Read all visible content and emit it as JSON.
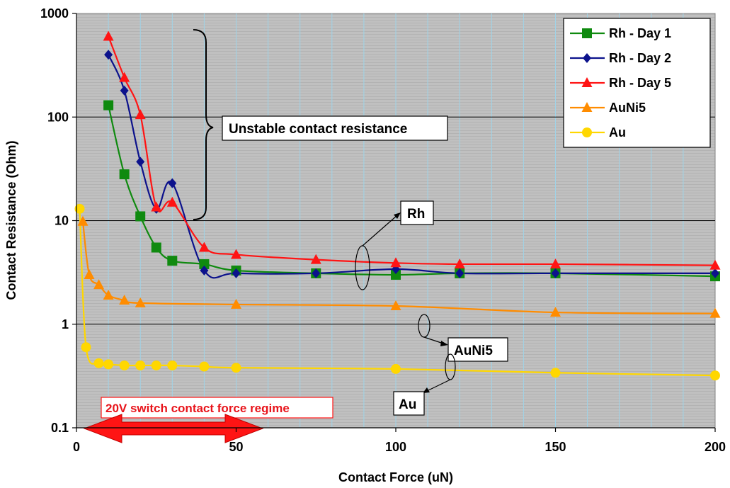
{
  "chart_data": {
    "type": "line",
    "title": "",
    "xlabel": "Contact Force (uN)",
    "ylabel": "Contact Resistance (Ohm)",
    "xlim": [
      0,
      200
    ],
    "ylim": [
      0.1,
      1000
    ],
    "yscale": "log",
    "grid": true,
    "legend_position": "top-right",
    "x_ticks": [
      "0",
      "50",
      "100",
      "150",
      "200"
    ],
    "y_ticks": [
      "0.1",
      "1",
      "10",
      "100",
      "1000"
    ],
    "series": [
      {
        "name": "Rh - Day 1",
        "color": "#0f8a0f",
        "marker": "square",
        "points": [
          [
            10,
            130
          ],
          [
            15,
            28
          ],
          [
            20,
            11
          ],
          [
            25,
            5.5
          ],
          [
            30,
            4.1
          ],
          [
            40,
            3.8
          ],
          [
            50,
            3.3
          ],
          [
            75,
            3.1
          ],
          [
            100,
            3.0
          ],
          [
            120,
            3.1
          ],
          [
            150,
            3.1
          ],
          [
            200,
            2.9
          ]
        ]
      },
      {
        "name": "Rh - Day 2",
        "color": "#0c128c",
        "marker": "diamond",
        "points": [
          [
            10,
            400
          ],
          [
            15,
            180
          ],
          [
            20,
            37
          ],
          [
            25,
            13
          ],
          [
            30,
            23
          ],
          [
            40,
            3.3
          ],
          [
            50,
            3.1
          ],
          [
            75,
            3.1
          ],
          [
            100,
            3.4
          ],
          [
            120,
            3.1
          ],
          [
            150,
            3.1
          ],
          [
            200,
            3.1
          ]
        ]
      },
      {
        "name": "Rh - Day 5",
        "color": "#ff1414",
        "marker": "triangle",
        "points": [
          [
            10,
            600
          ],
          [
            15,
            240
          ],
          [
            20,
            105
          ],
          [
            25,
            13.5
          ],
          [
            30,
            15
          ],
          [
            40,
            5.5
          ],
          [
            50,
            4.7
          ],
          [
            75,
            4.2
          ],
          [
            100,
            3.9
          ],
          [
            120,
            3.8
          ],
          [
            150,
            3.8
          ],
          [
            200,
            3.7
          ]
        ]
      },
      {
        "name": "AuNi5",
        "color": "#ff8c00",
        "marker": "triangle",
        "points": [
          [
            2,
            9.8
          ],
          [
            4,
            3.0
          ],
          [
            7,
            2.4
          ],
          [
            10,
            1.9
          ],
          [
            15,
            1.7
          ],
          [
            20,
            1.6
          ],
          [
            50,
            1.55
          ],
          [
            100,
            1.5
          ],
          [
            150,
            1.3
          ],
          [
            200,
            1.27
          ]
        ]
      },
      {
        "name": "Au",
        "color": "#ffd700",
        "marker": "circle",
        "points": [
          [
            1,
            13
          ],
          [
            3,
            0.6
          ],
          [
            7,
            0.42
          ],
          [
            10,
            0.41
          ],
          [
            15,
            0.4
          ],
          [
            20,
            0.4
          ],
          [
            25,
            0.4
          ],
          [
            30,
            0.4
          ],
          [
            40,
            0.39
          ],
          [
            50,
            0.38
          ],
          [
            100,
            0.37
          ],
          [
            150,
            0.34
          ],
          [
            200,
            0.32
          ]
        ]
      }
    ],
    "annotations": {
      "unstable": "Unstable contact resistance",
      "rh": "Rh",
      "auni5": "AuNi5",
      "au": "Au",
      "regime": "20V switch contact force regime"
    }
  }
}
